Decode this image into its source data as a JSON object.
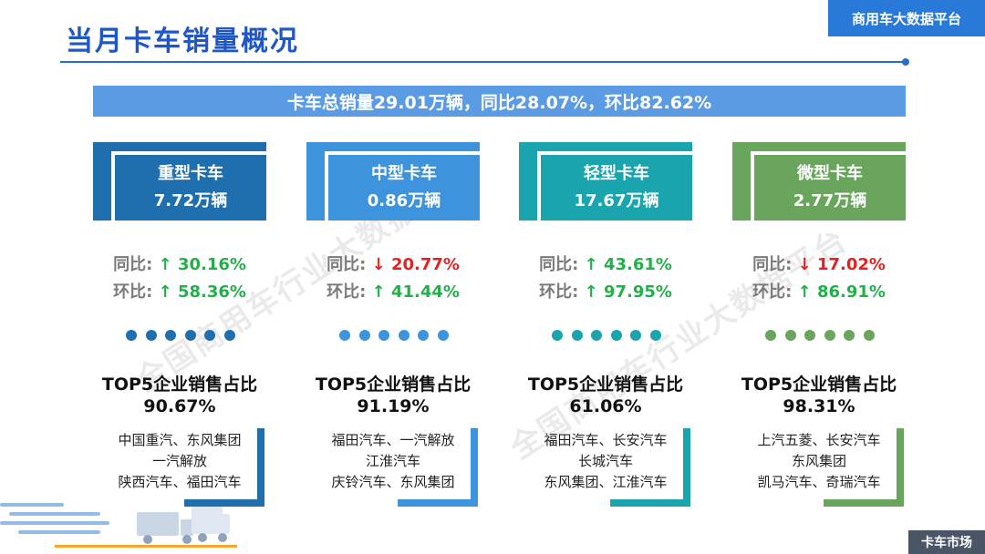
{
  "header": {
    "title": "当月卡车销量概况",
    "brand_tag": "商用车大数据平台"
  },
  "summary_banner": "卡车总销量29.01万辆，同比28.07%，环比82.62%",
  "colors": {
    "heavy": "#1f6fae",
    "medium": "#3d94dd",
    "light": "#1aa4ad",
    "mini": "#69a55c",
    "up": "#22b04b",
    "down": "#e52222"
  },
  "segments": [
    {
      "name": "重型卡车",
      "volume": "7.72万辆",
      "yoy_label": "同比:",
      "yoy_arrow": "↑",
      "yoy_value": "30.16%",
      "yoy_dir": "up",
      "mom_label": "环比:",
      "mom_arrow": "↑",
      "mom_value": "58.36%",
      "mom_dir": "up",
      "top5_title": "TOP5企业销售占比",
      "top5_share": "90.67%",
      "brands_line1": "中国重汽、东风集团",
      "brands_line2": "一汽解放",
      "brands_line3": "陕西汽车、福田汽车"
    },
    {
      "name": "中型卡车",
      "volume": "0.86万辆",
      "yoy_label": "同比:",
      "yoy_arrow": "↓",
      "yoy_value": "20.77%",
      "yoy_dir": "down",
      "mom_label": "环比:",
      "mom_arrow": "↑",
      "mom_value": "41.44%",
      "mom_dir": "up",
      "top5_title": "TOP5企业销售占比",
      "top5_share": "91.19%",
      "brands_line1": "福田汽车、一汽解放",
      "brands_line2": "江淮汽车",
      "brands_line3": "庆铃汽车、东风集团"
    },
    {
      "name": "轻型卡车",
      "volume": "17.67万辆",
      "yoy_label": "同比:",
      "yoy_arrow": "↑",
      "yoy_value": "43.61%",
      "yoy_dir": "up",
      "mom_label": "环比:",
      "mom_arrow": "↑",
      "mom_value": "97.95%",
      "mom_dir": "up",
      "top5_title": "TOP5企业销售占比",
      "top5_share": "61.06%",
      "brands_line1": "福田汽车、长安汽车",
      "brands_line2": "长城汽车",
      "brands_line3": "东风集团、江淮汽车"
    },
    {
      "name": "微型卡车",
      "volume": "2.77万辆",
      "yoy_label": "同比:",
      "yoy_arrow": "↓",
      "yoy_value": "17.02%",
      "yoy_dir": "down",
      "mom_label": "环比:",
      "mom_arrow": "↑",
      "mom_value": "86.91%",
      "mom_dir": "up",
      "top5_title": "TOP5企业销售占比",
      "top5_share": "98.31%",
      "brands_line1": "上汽五菱、长安汽车",
      "brands_line2": "东风集团",
      "brands_line3": "凯马汽车、奇瑞汽车"
    }
  ],
  "watermark_text": "全国商用车行业大数据平台",
  "footer_tag": "卡车市场"
}
